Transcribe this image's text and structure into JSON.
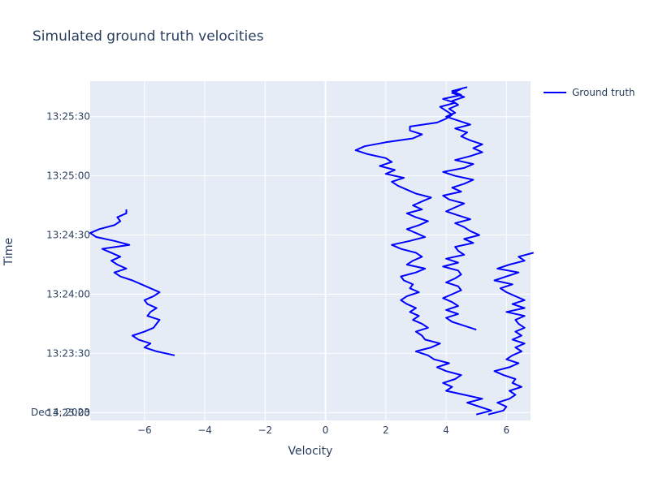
{
  "chart_data": {
    "type": "line",
    "title": "Simulated ground truth velocities",
    "xlabel": "Velocity",
    "ylabel": "Time",
    "xlim": [
      -7.8,
      6.8
    ],
    "ylim": [
      "2023-12-04 13:22:56",
      "2023-12-04 13:25:48"
    ],
    "x_ticks": [
      -6,
      -4,
      -2,
      0,
      2,
      4,
      6
    ],
    "x_tick_labels": [
      "−6",
      "−4",
      "−2",
      "0",
      "2",
      "4",
      "6"
    ],
    "y_ticks": [
      "13:23:00",
      "13:23:30",
      "13:24:00",
      "13:24:30",
      "13:25:00",
      "13:25:30"
    ],
    "y_tick_labels": [
      "13:23:00",
      "13:23:30",
      "13:24:00",
      "13:24:30",
      "13:25:00",
      "13:25:30"
    ],
    "y_date_label": "Dec 4, 2023",
    "grid": true,
    "legend_position": "top-right",
    "colors": {
      "plot_bg": "#e5ecf6",
      "grid": "#ffffff",
      "text": "#2a3f5f",
      "series": "#0000ff"
    },
    "series": [
      {
        "name": "Ground truth",
        "segments": [
          {
            "time": [
              "13:23:29",
              "13:23:31",
              "13:23:33",
              "13:23:35",
              "13:23:37",
              "13:23:39",
              "13:23:41",
              "13:23:43",
              "13:23:45",
              "13:23:47",
              "13:23:49",
              "13:23:51",
              "13:23:53",
              "13:23:55",
              "13:23:57",
              "13:23:59",
              "13:24:01",
              "13:24:03",
              "13:24:05",
              "13:24:07",
              "13:24:09",
              "13:24:11",
              "13:24:13",
              "13:24:15",
              "13:24:17",
              "13:24:19",
              "13:24:21",
              "13:24:23",
              "13:24:25",
              "13:24:27",
              "13:24:29",
              "13:24:31",
              "13:24:33",
              "13:24:35",
              "13:24:37",
              "13:24:39",
              "13:24:41",
              "13:24:43"
            ],
            "velocity": [
              -5.0,
              -5.6,
              -6.0,
              -5.8,
              -6.2,
              -6.4,
              -6.0,
              -5.7,
              -5.6,
              -5.5,
              -5.9,
              -5.8,
              -5.6,
              -5.9,
              -6.0,
              -5.7,
              -5.5,
              -5.8,
              -6.1,
              -6.4,
              -6.8,
              -7.0,
              -6.6,
              -6.9,
              -7.1,
              -6.8,
              -7.1,
              -7.4,
              -6.5,
              -7.0,
              -7.6,
              -7.8,
              -7.5,
              -7.0,
              -6.8,
              -6.9,
              -6.6,
              -6.6
            ]
          },
          {
            "time": [
              "13:22:59",
              "13:23:01",
              "13:23:03",
              "13:23:05",
              "13:23:07",
              "13:23:09",
              "13:23:11",
              "13:23:13",
              "13:23:15",
              "13:23:17",
              "13:23:19",
              "13:23:21",
              "13:23:23",
              "13:23:25",
              "13:23:27",
              "13:23:29",
              "13:23:31",
              "13:23:33",
              "13:23:35",
              "13:23:37",
              "13:23:39",
              "13:23:41",
              "13:23:43",
              "13:23:45",
              "13:23:47",
              "13:23:49",
              "13:23:51",
              "13:23:53",
              "13:23:55",
              "13:23:57",
              "13:23:59",
              "13:24:01",
              "13:24:03",
              "13:24:05",
              "13:24:07",
              "13:24:09",
              "13:24:11",
              "13:24:13",
              "13:24:15",
              "13:24:17",
              "13:24:19",
              "13:24:21",
              "13:24:23",
              "13:24:25",
              "13:24:27",
              "13:24:29",
              "13:24:31",
              "13:24:33",
              "13:24:35",
              "13:24:37",
              "13:24:39",
              "13:24:41",
              "13:24:43",
              "13:24:45",
              "13:24:47",
              "13:24:49",
              "13:24:51",
              "13:24:53",
              "13:24:55",
              "13:24:57",
              "13:24:59",
              "13:25:01",
              "13:25:03",
              "13:25:05",
              "13:25:07",
              "13:25:09",
              "13:25:11",
              "13:25:13",
              "13:25:15",
              "13:25:17",
              "13:25:19",
              "13:25:21",
              "13:25:23",
              "13:25:25",
              "13:25:27",
              "13:25:29",
              "13:25:31",
              "13:25:33",
              "13:25:35",
              "13:25:37",
              "13:25:39",
              "13:25:41",
              "13:25:43",
              "13:25:45"
            ],
            "velocity": [
              5.0,
              5.5,
              5.1,
              4.7,
              5.2,
              4.6,
              4.0,
              4.2,
              3.9,
              4.3,
              4.5,
              4.0,
              3.7,
              4.1,
              3.6,
              3.4,
              3.0,
              3.5,
              3.8,
              3.3,
              3.2,
              3.0,
              3.4,
              3.2,
              2.9,
              3.1,
              2.8,
              3.0,
              2.7,
              2.5,
              2.7,
              3.1,
              2.8,
              2.9,
              2.6,
              2.5,
              3.0,
              3.3,
              2.7,
              2.9,
              3.2,
              3.0,
              2.5,
              2.2,
              2.8,
              3.3,
              3.0,
              2.7,
              3.1,
              3.4,
              3.0,
              2.7,
              3.2,
              2.9,
              3.2,
              3.5,
              3.0,
              2.7,
              2.4,
              2.2,
              2.6,
              2.0,
              2.3,
              1.8,
              2.2,
              2.0,
              1.4,
              1.0,
              1.3,
              2.0,
              2.9,
              3.2,
              2.8,
              2.8,
              3.7,
              4.0,
              4.2,
              4.0,
              3.8,
              4.3,
              3.9,
              4.5,
              4.2,
              4.7
            ]
          },
          {
            "time": [
              "13:23:42",
              "13:23:44",
              "13:23:46",
              "13:23:48",
              "13:23:50",
              "13:23:52",
              "13:23:54",
              "13:23:56",
              "13:23:58",
              "13:24:00",
              "13:24:02",
              "13:24:04",
              "13:24:06",
              "13:24:08",
              "13:24:10",
              "13:24:12",
              "13:24:14",
              "13:24:16",
              "13:24:18",
              "13:24:20",
              "13:24:22",
              "13:24:24",
              "13:24:26",
              "13:24:28",
              "13:24:30",
              "13:24:32",
              "13:24:34",
              "13:24:36",
              "13:24:38",
              "13:24:40",
              "13:24:42",
              "13:24:44",
              "13:24:46",
              "13:24:48",
              "13:24:50",
              "13:24:52",
              "13:24:54",
              "13:24:56",
              "13:24:58",
              "13:25:00",
              "13:25:02",
              "13:25:04",
              "13:25:06",
              "13:25:08",
              "13:25:10",
              "13:25:12",
              "13:25:14",
              "13:25:16",
              "13:25:18",
              "13:25:20",
              "13:25:22",
              "13:25:24",
              "13:25:26",
              "13:25:28",
              "13:25:30",
              "13:25:32",
              "13:25:34",
              "13:25:36",
              "13:25:38",
              "13:25:40",
              "13:25:42",
              "13:25:44"
            ],
            "velocity": [
              5.0,
              4.6,
              4.2,
              4.0,
              4.4,
              4.0,
              4.4,
              4.2,
              3.9,
              4.2,
              4.5,
              4.4,
              4.0,
              4.3,
              4.5,
              4.4,
              3.9,
              4.4,
              4.0,
              4.6,
              4.4,
              4.3,
              4.9,
              4.6,
              5.1,
              4.8,
              4.6,
              4.3,
              4.8,
              4.4,
              4.0,
              4.3,
              4.6,
              4.1,
              3.9,
              4.5,
              4.2,
              4.6,
              4.9,
              4.3,
              3.9,
              4.6,
              4.9,
              4.3,
              4.8,
              5.2,
              4.9,
              5.2,
              4.8,
              4.5,
              4.7,
              4.3,
              4.8,
              4.4,
              4.0,
              4.3,
              4.1,
              4.4,
              4.2,
              4.6,
              4.2,
              4.5
            ]
          },
          {
            "time": [
              "13:22:59",
              "13:23:01",
              "13:23:03",
              "13:23:05",
              "13:23:07",
              "13:23:09",
              "13:23:11",
              "13:23:13",
              "13:23:15",
              "13:23:17",
              "13:23:19",
              "13:23:21",
              "13:23:23",
              "13:23:25",
              "13:23:27",
              "13:23:29",
              "13:23:31",
              "13:23:33",
              "13:23:35",
              "13:23:37",
              "13:23:39",
              "13:23:41",
              "13:23:43",
              "13:23:45",
              "13:23:47",
              "13:23:49",
              "13:23:51",
              "13:23:53",
              "13:23:55",
              "13:23:57",
              "13:23:59",
              "13:24:01",
              "13:24:03",
              "13:24:05",
              "13:24:07",
              "13:24:09",
              "13:24:11",
              "13:24:13",
              "13:24:15",
              "13:24:17",
              "13:24:19",
              "13:24:21"
            ],
            "velocity": [
              5.4,
              5.9,
              6.0,
              5.7,
              6.1,
              6.3,
              6.1,
              6.5,
              6.2,
              6.3,
              5.9,
              5.6,
              6.1,
              6.4,
              6.0,
              6.2,
              6.5,
              6.3,
              6.6,
              6.2,
              6.5,
              6.3,
              6.6,
              6.4,
              6.3,
              6.6,
              6.0,
              6.6,
              6.2,
              6.6,
              6.3,
              6.0,
              5.8,
              6.2,
              5.6,
              6.0,
              6.4,
              5.7,
              6.1,
              6.6,
              6.4,
              6.9
            ]
          }
        ]
      }
    ]
  }
}
